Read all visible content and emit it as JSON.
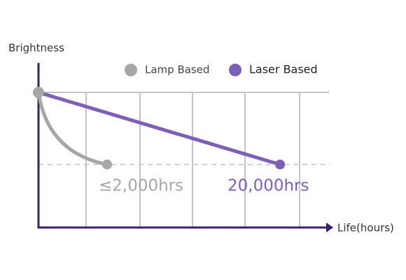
{
  "axes": {
    "y_label": "Brightness",
    "x_label": "Life(hours)"
  },
  "legend": [
    {
      "label": "Lamp Based"
    },
    {
      "label": "Laser Based"
    }
  ],
  "annotations": [
    "≤2,000hrs",
    "20,000hrs"
  ]
}
